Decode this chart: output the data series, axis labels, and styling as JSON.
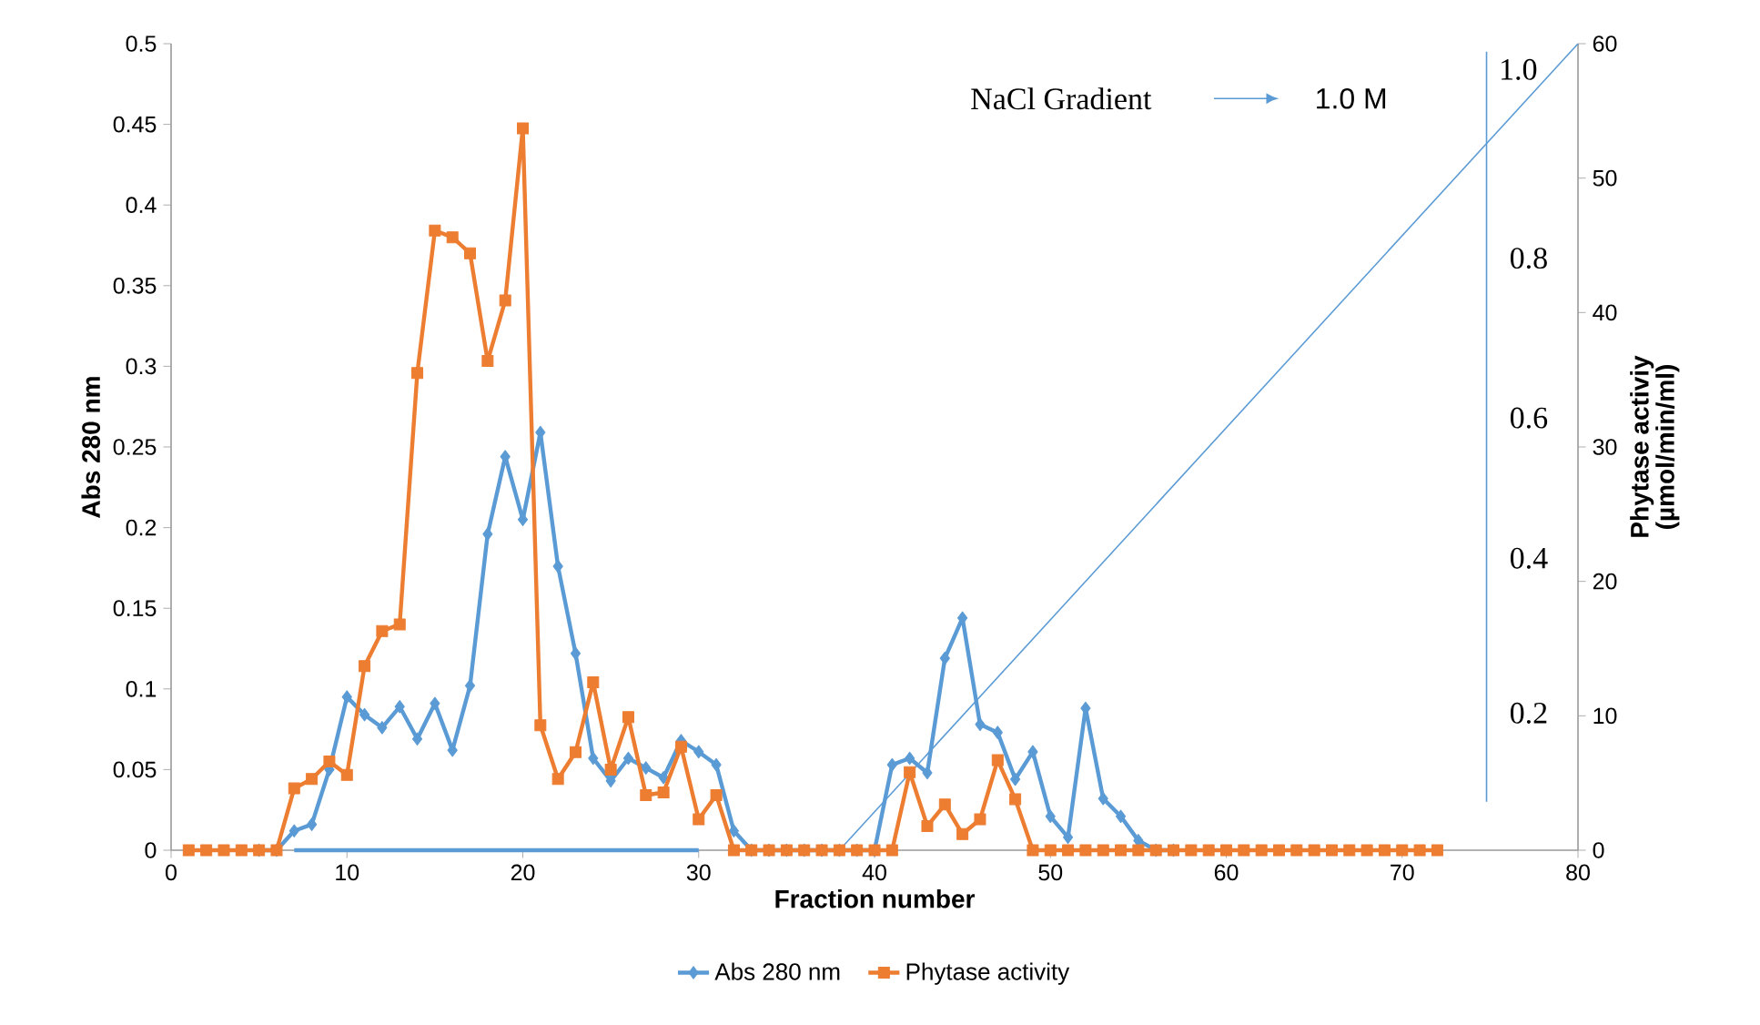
{
  "chart_data": {
    "type": "line",
    "xlabel": "Fraction number",
    "ylabel": "Abs 280 nm",
    "y2label": "Phytase activiy (µmol/min/ml)",
    "x": [
      1,
      2,
      3,
      4,
      5,
      6,
      7,
      8,
      9,
      10,
      11,
      12,
      13,
      14,
      15,
      16,
      17,
      18,
      19,
      20,
      21,
      22,
      23,
      24,
      25,
      26,
      27,
      28,
      29,
      30,
      31,
      32,
      33,
      34,
      35,
      36,
      37,
      38,
      39,
      40,
      41,
      42,
      43,
      44,
      45,
      46,
      47,
      48,
      49,
      50,
      51,
      52,
      53,
      54,
      55,
      56,
      57,
      58,
      59,
      60,
      61,
      62,
      63,
      64,
      65,
      66,
      67,
      68,
      69,
      70,
      71,
      72
    ],
    "series": [
      {
        "name": "Abs 280 nm",
        "color": "#5b9bd5",
        "marker": "diamond",
        "values": [
          null,
          null,
          null,
          null,
          0,
          0,
          0.012,
          0.016,
          0.05,
          0.095,
          0.084,
          0.076,
          0.089,
          0.069,
          0.091,
          0.062,
          0.102,
          0.196,
          0.244,
          0.205,
          0.259,
          0.176,
          0.122,
          0.057,
          0.043,
          0.057,
          0.051,
          0.045,
          0.068,
          0.061,
          0.053,
          0.012,
          0,
          0,
          0,
          0,
          0,
          0,
          0,
          0,
          0.053,
          0.057,
          0.048,
          0.119,
          0.144,
          0.078,
          0.073,
          0.044,
          0.061,
          0.021,
          0.008,
          0.088,
          0.032,
          0.021,
          0.006,
          0,
          0,
          null,
          null,
          null,
          null,
          null,
          null,
          null,
          null,
          null,
          null,
          null,
          null,
          null,
          null,
          null
        ]
      },
      {
        "name": "Phytase activity",
        "color": "#ed7d31",
        "marker": "square",
        "axis": "y2",
        "values": [
          0,
          0,
          0,
          0,
          0,
          0,
          4.6,
          5.3,
          6.6,
          5.6,
          13.7,
          16.3,
          16.8,
          35.5,
          46.1,
          45.6,
          44.4,
          36.4,
          40.9,
          53.7,
          9.3,
          5.3,
          7.3,
          12.5,
          6.0,
          9.9,
          4.1,
          4.3,
          7.7,
          2.3,
          4.1,
          0,
          0,
          0,
          0,
          0,
          0,
          0,
          0,
          0,
          0,
          5.8,
          1.8,
          3.4,
          1.2,
          2.3,
          6.7,
          3.8,
          0,
          0,
          0,
          0,
          0,
          0,
          0,
          0,
          0,
          0,
          0,
          0,
          0,
          0,
          0,
          0,
          0,
          0,
          0,
          0,
          0,
          0,
          0,
          0
        ]
      },
      {
        "color": "#5b9bd5",
        "marker": "none",
        "axis": "y2",
        "x": [
          38,
          80
        ],
        "values": [
          0,
          60
        ]
      },
      {
        "color": "#5b9bd5",
        "marker": "none",
        "x": [
          7,
          30
        ],
        "values": [
          0,
          0
        ]
      },
      {
        "color": "#5b9bd5",
        "marker": "none",
        "x": [
          74.8,
          74.8
        ],
        "values": [
          0.03,
          0.495
        ]
      }
    ],
    "xlim": [
      0,
      80
    ],
    "xticks": [
      0,
      10,
      20,
      30,
      40,
      50,
      60,
      70,
      80
    ],
    "ylim": [
      0,
      0.5
    ],
    "yticks": [
      0,
      0.05,
      0.1,
      0.15,
      0.2,
      0.25,
      0.3,
      0.35,
      0.4,
      0.45,
      0.5
    ],
    "y2lim": [
      0,
      60
    ],
    "y2ticks": [
      0,
      10,
      20,
      30,
      40,
      50,
      60
    ],
    "annotations": [
      "NaCl Gradient",
      "1.0 M",
      "0.2",
      "0.4",
      "0.6",
      "0.8",
      "1.0"
    ],
    "legend": "bottom",
    "line_style": "solid",
    "grid": false
  }
}
